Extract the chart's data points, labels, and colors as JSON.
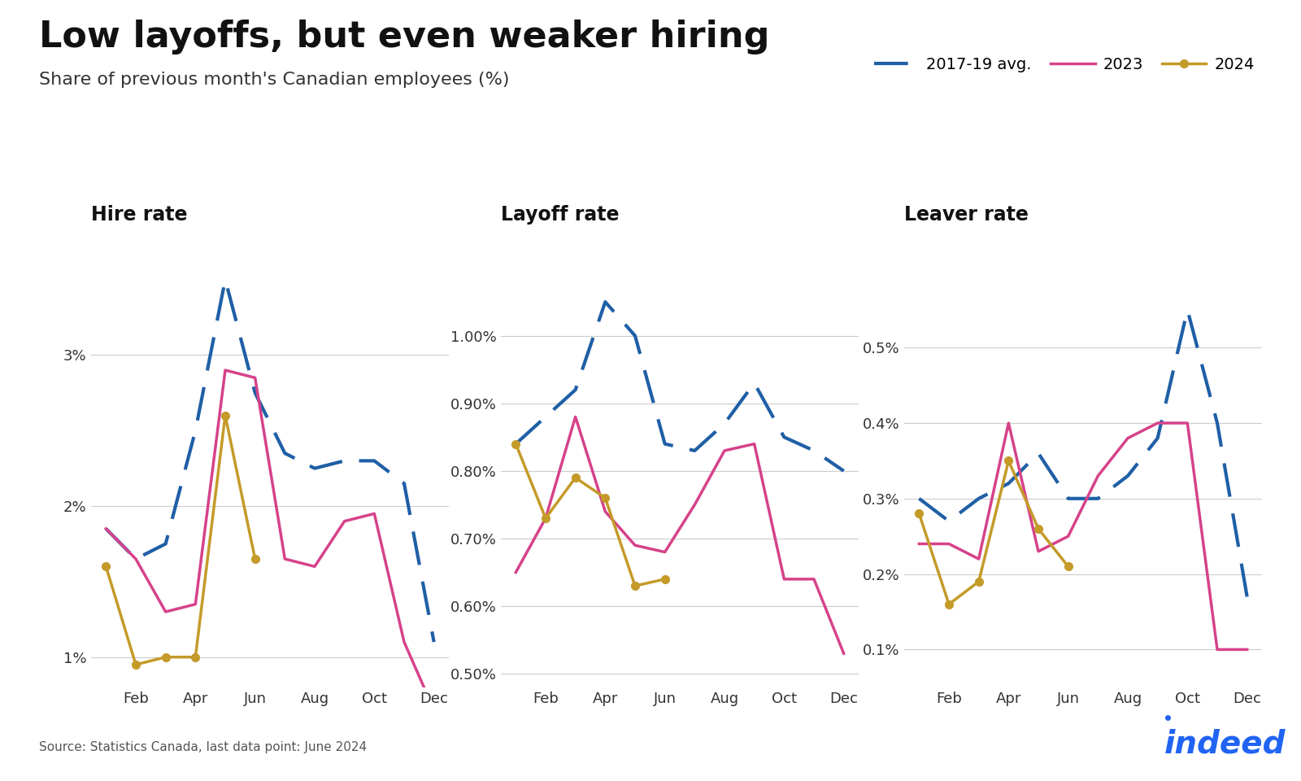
{
  "title": "Low layoffs, but even weaker hiring",
  "subtitle": "Share of previous month's Canadian employees (%)",
  "source": "Source: Statistics Canada, last data point: June 2024",
  "panels": [
    {
      "title": "Hire rate",
      "ylim": [
        0.008,
        0.038
      ],
      "yticks": [
        0.01,
        0.02,
        0.03
      ],
      "yticklabels": [
        "1%",
        "2%",
        "3%"
      ],
      "avg_2017_19": [
        0.0185,
        0.0165,
        0.0175,
        0.025,
        0.035,
        0.0275,
        0.0235,
        0.0225,
        0.023,
        0.023,
        0.0215,
        0.011
      ],
      "y2023": [
        0.0185,
        0.0165,
        0.013,
        0.0135,
        0.029,
        0.0285,
        0.0165,
        0.016,
        0.019,
        0.0195,
        0.011,
        0.0065
      ],
      "y2024": [
        0.016,
        0.0095,
        0.01,
        0.01,
        0.026,
        0.0165,
        null,
        null,
        null,
        null,
        null,
        null
      ]
    },
    {
      "title": "Layoff rate",
      "ylim": [
        0.0048,
        0.0115
      ],
      "yticks": [
        0.005,
        0.006,
        0.007,
        0.008,
        0.009,
        0.01
      ],
      "yticklabels": [
        "0.50%",
        "0.60%",
        "0.70%",
        "0.80%",
        "0.90%",
        "1.00%"
      ],
      "avg_2017_19": [
        0.0084,
        0.0088,
        0.0092,
        0.0105,
        0.01,
        0.0084,
        0.0083,
        0.0087,
        0.0093,
        0.0085,
        0.0083,
        0.008
      ],
      "y2023": [
        0.0065,
        0.0073,
        0.0088,
        0.0074,
        0.0069,
        0.0068,
        0.0075,
        0.0083,
        0.0084,
        0.0064,
        0.0064,
        0.0053
      ],
      "y2024": [
        0.0084,
        0.0073,
        0.0079,
        0.0076,
        0.0063,
        0.0064,
        null,
        null,
        null,
        null,
        null,
        null
      ]
    },
    {
      "title": "Leaver rate",
      "ylim": [
        0.0005,
        0.0065
      ],
      "yticks": [
        0.001,
        0.002,
        0.003,
        0.004,
        0.005
      ],
      "yticklabels": [
        "0.1%",
        "0.2%",
        "0.3%",
        "0.4%",
        "0.5%"
      ],
      "avg_2017_19": [
        0.003,
        0.0027,
        0.003,
        0.0032,
        0.0036,
        0.003,
        0.003,
        0.0033,
        0.0038,
        0.0055,
        0.004,
        0.0017
      ],
      "y2023": [
        0.0024,
        0.0024,
        0.0022,
        0.004,
        0.0023,
        0.0025,
        0.0033,
        0.0038,
        0.004,
        0.004,
        0.001,
        0.001
      ],
      "y2024": [
        0.0028,
        0.0016,
        0.0019,
        0.0035,
        0.0026,
        0.0021,
        null,
        null,
        null,
        null,
        null,
        null
      ]
    }
  ],
  "color_avg": "#1F5FA6",
  "color_2023": "#D6428A",
  "color_2024": "#C49A28",
  "legend_labels": [
    "2017-19 avg.",
    "2023",
    "2024"
  ],
  "background_color": "#FFFFFF"
}
